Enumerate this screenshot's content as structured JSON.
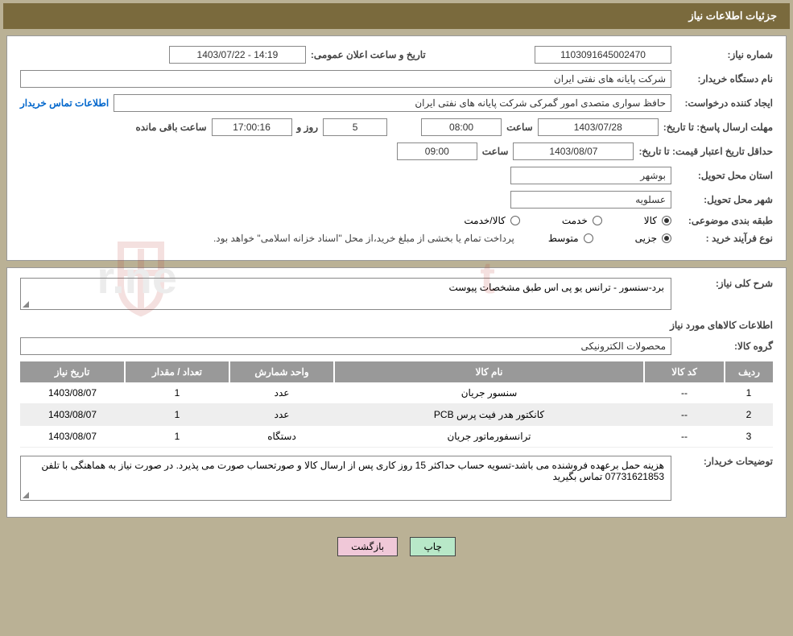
{
  "header": {
    "title": "جزئیات اطلاعات نیاز"
  },
  "info": {
    "need_number_label": "شماره نیاز:",
    "need_number": "1103091645002470",
    "announce_label": "تاریخ و ساعت اعلان عمومی:",
    "announce_value": "14:19 - 1403/07/22",
    "buyer_org_label": "نام دستگاه خریدار:",
    "buyer_org": "شرکت پایانه های نفتی ایران",
    "requester_label": "ایجاد کننده درخواست:",
    "requester": "حافظ سواری متصدی امور گمرکی شرکت پایانه های نفتی ایران",
    "contact_link": "اطلاعات تماس خریدار",
    "reply_deadline_label": "مهلت ارسال پاسخ: تا تاریخ:",
    "reply_date": "1403/07/28",
    "time_label": "ساعت",
    "reply_time": "08:00",
    "days_label": "روز و",
    "days_value": "5",
    "countdown": "17:00:16",
    "remaining_label": "ساعت باقی مانده",
    "price_validity_label": "حداقل تاریخ اعتبار قیمت: تا تاریخ:",
    "price_validity_date": "1403/08/07",
    "price_validity_time": "09:00",
    "province_label": "استان محل تحویل:",
    "province": "بوشهر",
    "city_label": "شهر محل تحویل:",
    "city": "عسلویه",
    "category_label": "طبقه بندی موضوعی:",
    "cat_good": "کالا",
    "cat_service": "خدمت",
    "cat_good_service": "کالا/خدمت",
    "process_label": "نوع فرآیند خرید :",
    "process_partial": "جزیی",
    "process_medium": "متوسط",
    "process_note": "پرداخت تمام یا بخشی از مبلغ خرید،از محل \"اسناد خزانه اسلامی\" خواهد بود."
  },
  "need": {
    "summary_label": "شرح کلی نیاز:",
    "summary": "برد-سنسور - ترانس یو پی اس طبق مشخصات پیوست",
    "items_title": "اطلاعات کالاهای مورد نیاز",
    "group_label": "گروه کالا:",
    "group": "محصولات الکترونیکی",
    "columns": {
      "row": "ردیف",
      "code": "کد کالا",
      "name": "نام کالا",
      "unit": "واحد شمارش",
      "qty": "تعداد / مقدار",
      "date": "تاریخ نیاز"
    },
    "rows": [
      {
        "idx": "1",
        "code": "--",
        "name": "سنسور جریان",
        "unit": "عدد",
        "qty": "1",
        "date": "1403/08/07"
      },
      {
        "idx": "2",
        "code": "--",
        "name": "کانکتور هدر فیت پرس PCB",
        "unit": "عدد",
        "qty": "1",
        "date": "1403/08/07"
      },
      {
        "idx": "3",
        "code": "--",
        "name": "ترانسفورماتور جریان",
        "unit": "دستگاه",
        "qty": "1",
        "date": "1403/08/07"
      }
    ],
    "buyer_notes_label": "توضیحات خریدار:",
    "buyer_notes": "هزینه حمل برعهده فروشنده می باشد-تسویه حساب حداکثر 15 روز کاری پس از ارسال کالا و صورتحساب صورت می پذیرد. در صورت نیاز به هماهنگی با تلفن 07731621853 تماس بگیرید"
  },
  "buttons": {
    "print": "چاپ",
    "back": "بازگشت"
  },
  "watermark": {
    "text": "AriaTender.net",
    "color": "#9b9b9b",
    "shield_color": "#b83a2e"
  }
}
